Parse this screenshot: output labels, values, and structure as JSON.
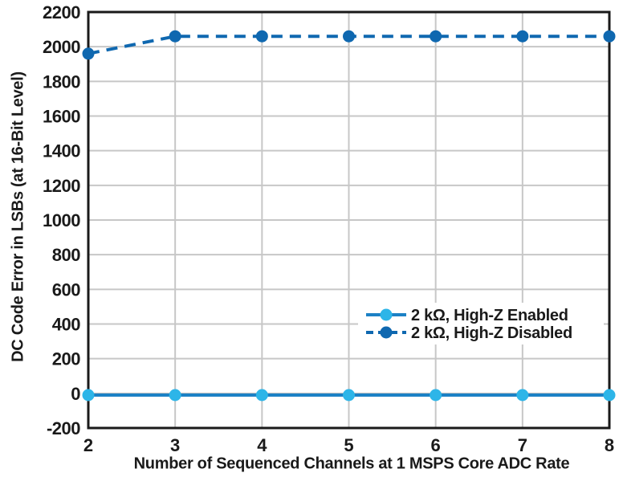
{
  "chart_data": {
    "type": "line",
    "title": "",
    "xlabel": "Number of Sequenced Channels at 1 MSPS Core ADC Rate",
    "ylabel": "DC Code Error in LSBs (at 16-Bit Level)",
    "x": [
      2,
      3,
      4,
      5,
      6,
      7,
      8
    ],
    "xlim": [
      2,
      8
    ],
    "ylim": [
      -200,
      2200
    ],
    "yticks": [
      -200,
      0,
      200,
      400,
      600,
      800,
      1000,
      1200,
      1400,
      1600,
      1800,
      2000,
      2200
    ],
    "xticks": [
      2,
      3,
      4,
      5,
      6,
      7,
      8
    ],
    "grid": true,
    "legend_position": "inside-right-middle",
    "series": [
      {
        "name": "2 kΩ, High-Z Enabled",
        "dash": "solid",
        "line_color": "#1C81C5",
        "marker_color": "#2DB5E8",
        "values": [
          -10,
          -10,
          -10,
          -10,
          -10,
          -10,
          -10
        ]
      },
      {
        "name": "2 kΩ, High-Z Disabled",
        "dash": "dashed",
        "line_color": "#0F68B0",
        "marker_color": "#0F68B0",
        "values": [
          1960,
          2060,
          2060,
          2060,
          2060,
          2060,
          2060
        ]
      }
    ],
    "styles": {
      "background": "#ffffff",
      "grid_color": "#c7c7c7",
      "axis_color": "#1a1a1a",
      "text_color": "#1a1a1a",
      "legend_background": "#ffffff"
    }
  }
}
